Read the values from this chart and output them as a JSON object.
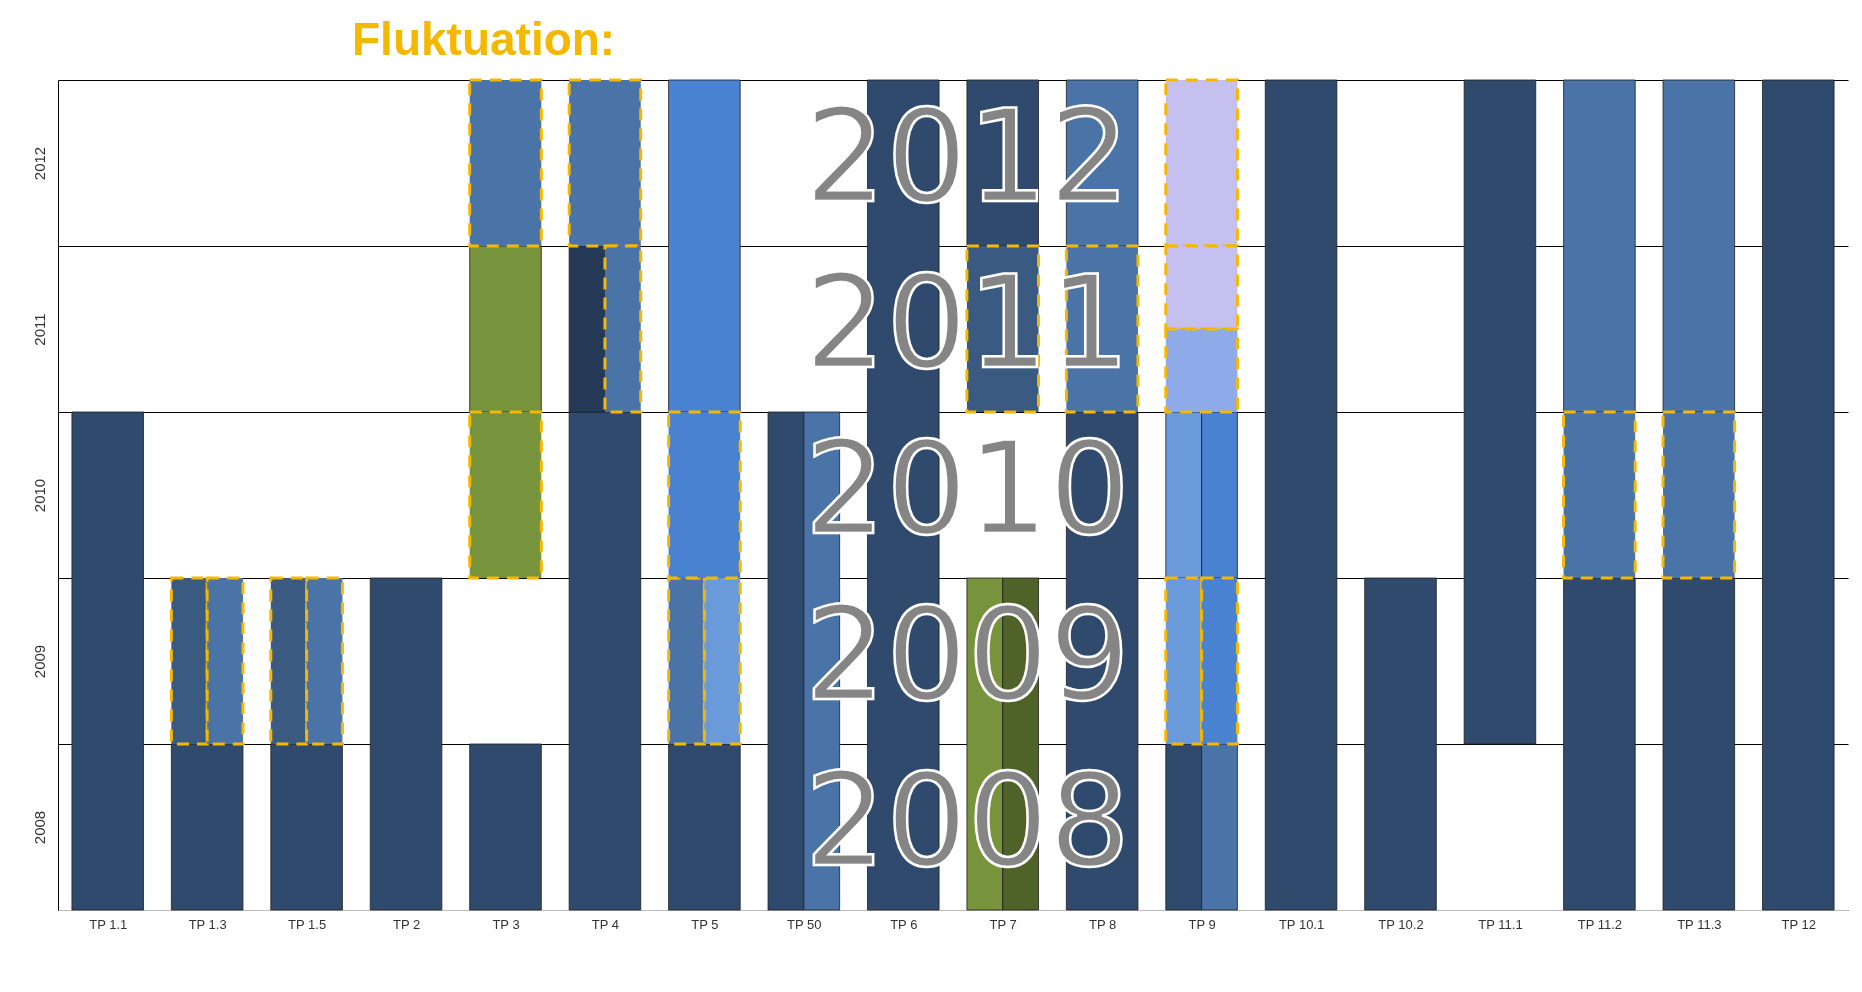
{
  "chart_data": {
    "type": "bar",
    "title": "Fluktuation:",
    "categories": [
      "TP 1.1",
      "TP 1.3",
      "TP 1.5",
      "TP 2",
      "TP 3",
      "TP 4",
      "TP 5",
      "TP 50",
      "TP 6",
      "TP 7",
      "TP 8",
      "TP 9",
      "TP 10.1",
      "TP 10.2",
      "TP 11.1",
      "TP 11.2",
      "TP 11.3",
      "TP 12"
    ],
    "ylim": [
      2008,
      2013
    ],
    "yticks": [
      {
        "value": 2008,
        "label": null
      },
      {
        "value": 2008.5,
        "label": "2008"
      },
      {
        "value": 2009,
        "label": null
      },
      {
        "value": 2009.5,
        "label": "2009"
      },
      {
        "value": 2010,
        "label": null
      },
      {
        "value": 2010.5,
        "label": "2010"
      },
      {
        "value": 2011,
        "label": null
      },
      {
        "value": 2011.5,
        "label": "2011"
      },
      {
        "value": 2012,
        "label": null
      },
      {
        "value": 2012.5,
        "label": "2012"
      },
      {
        "value": 2013,
        "label": null
      }
    ],
    "grid": "y",
    "annotations": [
      "2012",
      "2011",
      "2010",
      "2009",
      "2008"
    ],
    "series": [
      {
        "color": "#2f4a6c",
        "line_style": "solid",
        "values": [
          3,
          1,
          1,
          2,
          1,
          3,
          1,
          3,
          5,
          1,
          3,
          1,
          5,
          2,
          4,
          2,
          2,
          5
        ],
        "base": [
          2008,
          2008,
          2008,
          2008,
          2008,
          2008,
          2008,
          2008,
          2008,
          2012,
          2008,
          2008,
          2008,
          2008,
          2009,
          2008,
          2008,
          2008
        ]
      },
      {
        "color": "#3a5a82",
        "line_style": "dashed",
        "values": [
          null,
          1,
          1,
          null,
          null,
          null,
          null,
          null,
          null,
          1,
          null,
          null,
          null,
          null,
          null,
          null,
          null,
          null
        ],
        "base": [
          null,
          2009,
          2009,
          null,
          null,
          null,
          null,
          null,
          null,
          2011,
          null,
          null,
          null,
          null,
          null,
          null,
          null,
          null
        ]
      },
      {
        "color": "#243a57",
        "line_style": "solid",
        "values": [
          null,
          null,
          null,
          null,
          null,
          1,
          null,
          null,
          null,
          null,
          null,
          null,
          null,
          null,
          null,
          null,
          null,
          null
        ],
        "base": [
          null,
          null,
          null,
          null,
          null,
          2011,
          null,
          null,
          null,
          null,
          null,
          null,
          null,
          null,
          null,
          null,
          null,
          null
        ]
      },
      {
        "color": "#4a73a8",
        "line_style": "dashed",
        "values": [
          null,
          1,
          1,
          null,
          1,
          1,
          1,
          null,
          null,
          null,
          1,
          null,
          null,
          null,
          null,
          1,
          1,
          null
        ],
        "base": [
          null,
          2009,
          2009,
          null,
          2012,
          2012,
          2009,
          null,
          null,
          null,
          2011,
          null,
          null,
          null,
          null,
          2010,
          2010,
          null
        ]
      },
      {
        "color": "#4a73a8",
        "line_style": "dashed",
        "values": [
          null,
          null,
          null,
          null,
          null,
          1,
          null,
          null,
          null,
          null,
          null,
          null,
          null,
          null,
          null,
          null,
          null,
          null
        ],
        "base": [
          null,
          null,
          null,
          null,
          null,
          2011,
          null,
          null,
          null,
          null,
          null,
          null,
          null,
          null,
          null,
          null,
          null,
          null
        ]
      },
      {
        "color": "#4a73a8",
        "line_style": "solid",
        "values": [
          null,
          null,
          null,
          null,
          null,
          null,
          null,
          3,
          null,
          null,
          1,
          1,
          null,
          null,
          null,
          2,
          2,
          null
        ],
        "base": [
          null,
          null,
          null,
          null,
          null,
          null,
          null,
          2008,
          null,
          null,
          2012,
          2008,
          null,
          null,
          null,
          2011,
          2011,
          null
        ]
      },
      {
        "color": "#6a9ada",
        "line_style": "dashed",
        "values": [
          null,
          null,
          null,
          null,
          null,
          null,
          1,
          null,
          null,
          null,
          null,
          1,
          null,
          null,
          null,
          null,
          null,
          null
        ],
        "base": [
          null,
          null,
          null,
          null,
          null,
          null,
          2009,
          null,
          null,
          null,
          null,
          2009,
          null,
          null,
          null,
          null,
          null,
          null
        ]
      },
      {
        "color": "#6a9ada",
        "line_style": "solid",
        "values": [
          null,
          null,
          null,
          null,
          null,
          null,
          null,
          null,
          null,
          null,
          null,
          1,
          null,
          null,
          null,
          null,
          null,
          null
        ],
        "base": [
          null,
          null,
          null,
          null,
          null,
          null,
          null,
          null,
          null,
          null,
          null,
          2010,
          null,
          null,
          null,
          null,
          null,
          null
        ]
      },
      {
        "color": "#4a82d2",
        "line_style": "dashed",
        "values": [
          null,
          null,
          null,
          null,
          null,
          null,
          1,
          null,
          null,
          null,
          null,
          1,
          null,
          null,
          null,
          null,
          null,
          null
        ],
        "base": [
          null,
          null,
          null,
          null,
          null,
          null,
          2010,
          null,
          null,
          null,
          null,
          2009,
          null,
          null,
          null,
          null,
          null,
          null
        ]
      },
      {
        "color": "#4a82d2",
        "line_style": "solid",
        "values": [
          null,
          null,
          null,
          null,
          null,
          null,
          2,
          null,
          null,
          null,
          null,
          1,
          null,
          null,
          null,
          null,
          null,
          null
        ],
        "base": [
          null,
          null,
          null,
          null,
          null,
          null,
          2011,
          null,
          null,
          null,
          null,
          2010,
          null,
          null,
          null,
          null,
          null,
          null
        ]
      },
      {
        "color": "#77933c",
        "line_style": "dashed",
        "values": [
          null,
          null,
          null,
          null,
          1,
          null,
          null,
          null,
          null,
          null,
          null,
          null,
          null,
          null,
          null,
          null,
          null,
          null
        ],
        "base": [
          null,
          null,
          null,
          null,
          2010,
          null,
          null,
          null,
          null,
          null,
          null,
          null,
          null,
          null,
          null,
          null,
          null,
          null
        ]
      },
      {
        "color": "#77933c",
        "line_style": "solid",
        "values": [
          null,
          null,
          null,
          null,
          1,
          null,
          null,
          null,
          null,
          2,
          null,
          null,
          null,
          null,
          null,
          null,
          null,
          null
        ],
        "base": [
          null,
          null,
          null,
          null,
          2011,
          null,
          null,
          null,
          null,
          2008,
          null,
          null,
          null,
          null,
          null,
          null,
          null,
          null
        ]
      },
      {
        "color": "#4f6228",
        "line_style": "solid",
        "values": [
          null,
          null,
          null,
          null,
          null,
          null,
          null,
          null,
          null,
          2,
          null,
          null,
          null,
          null,
          null,
          null,
          null,
          null
        ],
        "base": [
          null,
          null,
          null,
          null,
          null,
          null,
          null,
          null,
          null,
          2008,
          null,
          null,
          null,
          null,
          null,
          null,
          null,
          null
        ]
      },
      {
        "color": "#c5c0f0",
        "line_style": "dashed",
        "values": [
          null,
          null,
          null,
          null,
          null,
          null,
          null,
          null,
          null,
          null,
          null,
          1,
          null,
          null,
          null,
          null,
          null,
          null
        ],
        "base": [
          null,
          null,
          null,
          null,
          null,
          null,
          null,
          null,
          null,
          null,
          null,
          2012,
          null,
          null,
          null,
          null,
          null,
          null
        ]
      },
      {
        "color": "#c5c0f0",
        "line_style": "dashed",
        "values": [
          null,
          null,
          null,
          null,
          null,
          null,
          null,
          null,
          null,
          null,
          null,
          0.5,
          null,
          null,
          null,
          null,
          null,
          null
        ],
        "base": [
          null,
          null,
          null,
          null,
          null,
          null,
          null,
          null,
          null,
          null,
          null,
          2011.5,
          null,
          null,
          null,
          null,
          null,
          null
        ]
      },
      {
        "color": "#8eaae8",
        "line_style": "dashed",
        "values": [
          null,
          null,
          null,
          null,
          null,
          null,
          null,
          null,
          null,
          null,
          null,
          0.5,
          null,
          null,
          null,
          null,
          null,
          null
        ],
        "base": [
          null,
          null,
          null,
          null,
          null,
          null,
          null,
          null,
          null,
          null,
          null,
          2011,
          null,
          null,
          null,
          null,
          null,
          null
        ]
      }
    ]
  }
}
